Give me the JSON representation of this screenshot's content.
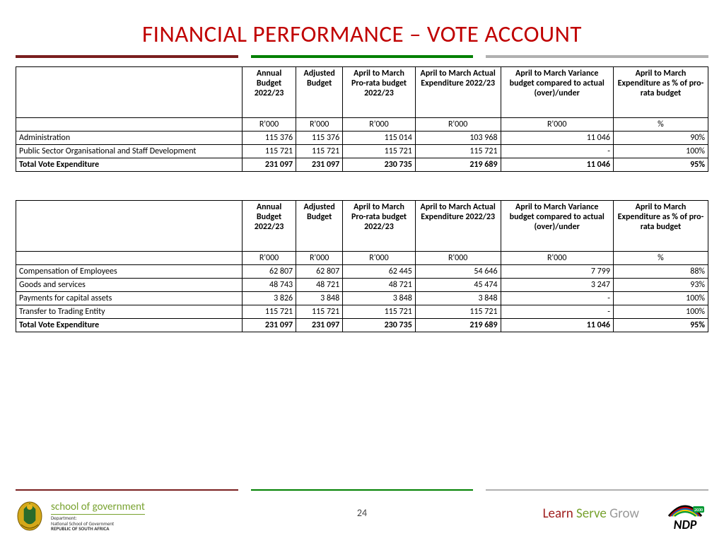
{
  "title": "FINANCIAL PERFORMANCE – VOTE ACCOUNT",
  "title_color": "#c00000",
  "title_fontsize": 33,
  "rule_colors": [
    "#7a1f1f",
    "#008000",
    "#b0b0b0"
  ],
  "columns": [
    "",
    "Annual Budget 2022/23",
    "Adjusted Budget",
    "April to March Pro-rata budget 2022/23",
    "April to March Actual Expenditure 2022/23",
    "April to March Variance budget compared to actual (over)/under",
    "April to March Expenditure as % of pro-rata budget"
  ],
  "units": [
    "",
    "R'000",
    "R'000",
    "R'000",
    "R'000",
    "R'000",
    "%"
  ],
  "table1": {
    "rows": [
      {
        "label": "Administration",
        "cells": [
          "115 376",
          "115 376",
          "115 014",
          "103 968",
          "11 046",
          "90%"
        ]
      },
      {
        "label": "Public Sector Organisational and Staff Development",
        "cells": [
          "115 721",
          "115 721",
          "115 721",
          "115 721",
          "-",
          "100%"
        ]
      }
    ],
    "total": {
      "label": "Total Vote Expenditure",
      "cells": [
        "231 097",
        "231 097",
        "230 735",
        "219 689",
        "11 046",
        "95%"
      ]
    }
  },
  "table2": {
    "rows": [
      {
        "label": "Compensation of Employees",
        "cells": [
          "62 807",
          "62 807",
          "62 445",
          "54 646",
          "7 799",
          "88%"
        ]
      },
      {
        "label": "Goods and services",
        "cells": [
          "48 743",
          "48 721",
          "48 721",
          "45 474",
          "3 247",
          "93%"
        ]
      },
      {
        "label": "Payments for capital assets",
        "cells": [
          "3 826",
          "3 848",
          "3 848",
          "3 848",
          "-",
          "100%"
        ]
      },
      {
        "label": "Transfer to Trading Entity",
        "cells": [
          "115 721",
          "115 721",
          "115 721",
          "115 721",
          "-",
          "100%"
        ]
      }
    ],
    "total": {
      "label": "Total Vote Expenditure",
      "cells": [
        "231 097",
        "231 097",
        "230 735",
        "219 689",
        "11 046",
        "95%"
      ]
    }
  },
  "footer": {
    "sog_title": "school of government",
    "sog_dept": "Department:",
    "sog_line2": "National School of Government",
    "sog_line3": "REPUBLIC OF SOUTH AFRICA",
    "page_number": "24",
    "learn": "Learn",
    "serve": "Serve",
    "grow": "Grow",
    "ndp_label": "NDP",
    "ndp_year": "2030"
  }
}
